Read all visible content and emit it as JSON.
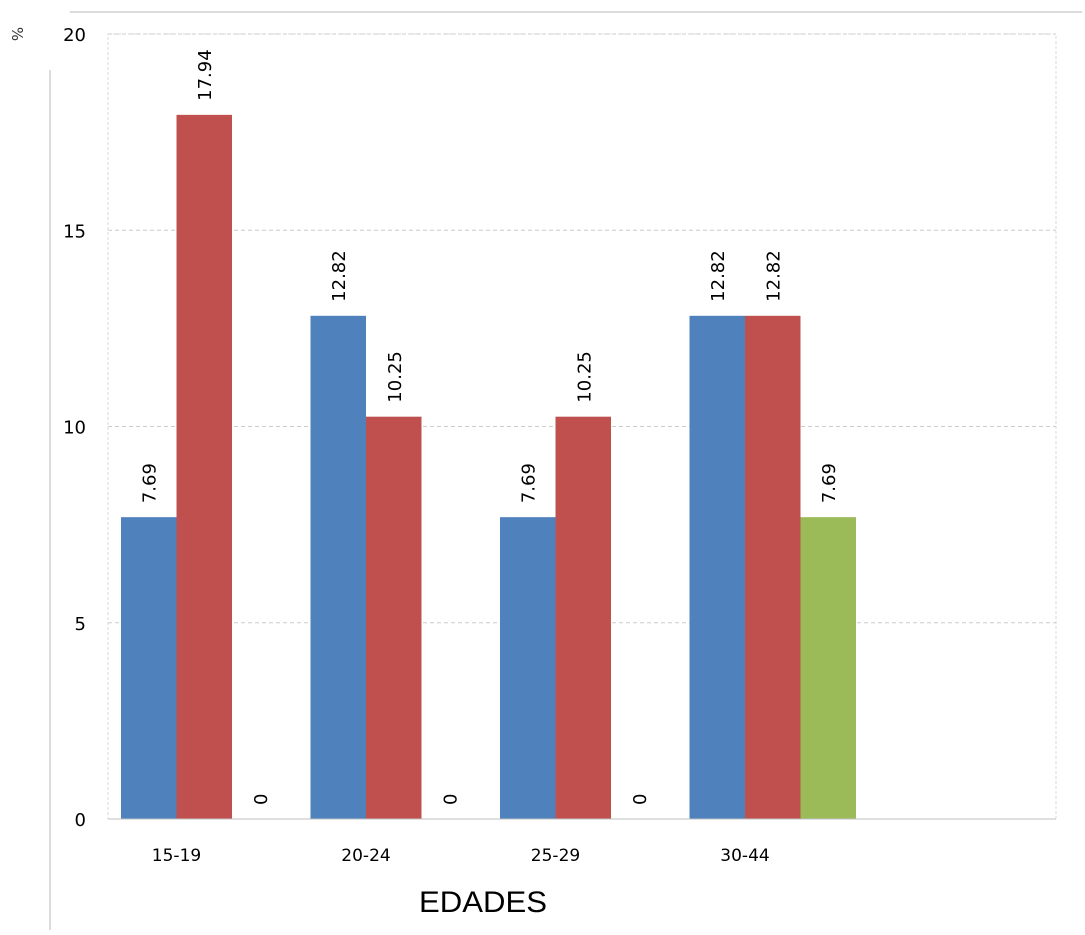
{
  "chart_data": {
    "type": "bar",
    "title": "",
    "xlabel": "EDADES",
    "ylabel": "%",
    "ylim": [
      0,
      20
    ],
    "yticks": [
      0,
      5,
      10,
      15,
      20
    ],
    "grid": true,
    "categories": [
      "15-19",
      "20-24",
      "25-29",
      "30-44"
    ],
    "series": [
      {
        "color": "#4f81bd",
        "values": [
          7.69,
          12.82,
          7.69,
          12.82
        ]
      },
      {
        "color": "#c0504d",
        "values": [
          17.94,
          10.25,
          10.25,
          12.82
        ]
      },
      {
        "color": "#9bbb59",
        "values": [
          0,
          0,
          0,
          7.69
        ]
      }
    ],
    "data_labels": [
      [
        "7.69",
        "17.94",
        "0"
      ],
      [
        "12.82",
        "10.25",
        "0"
      ],
      [
        "7.69",
        "10.25",
        "0"
      ],
      [
        "12.82",
        "12.82",
        "7.69"
      ]
    ]
  }
}
